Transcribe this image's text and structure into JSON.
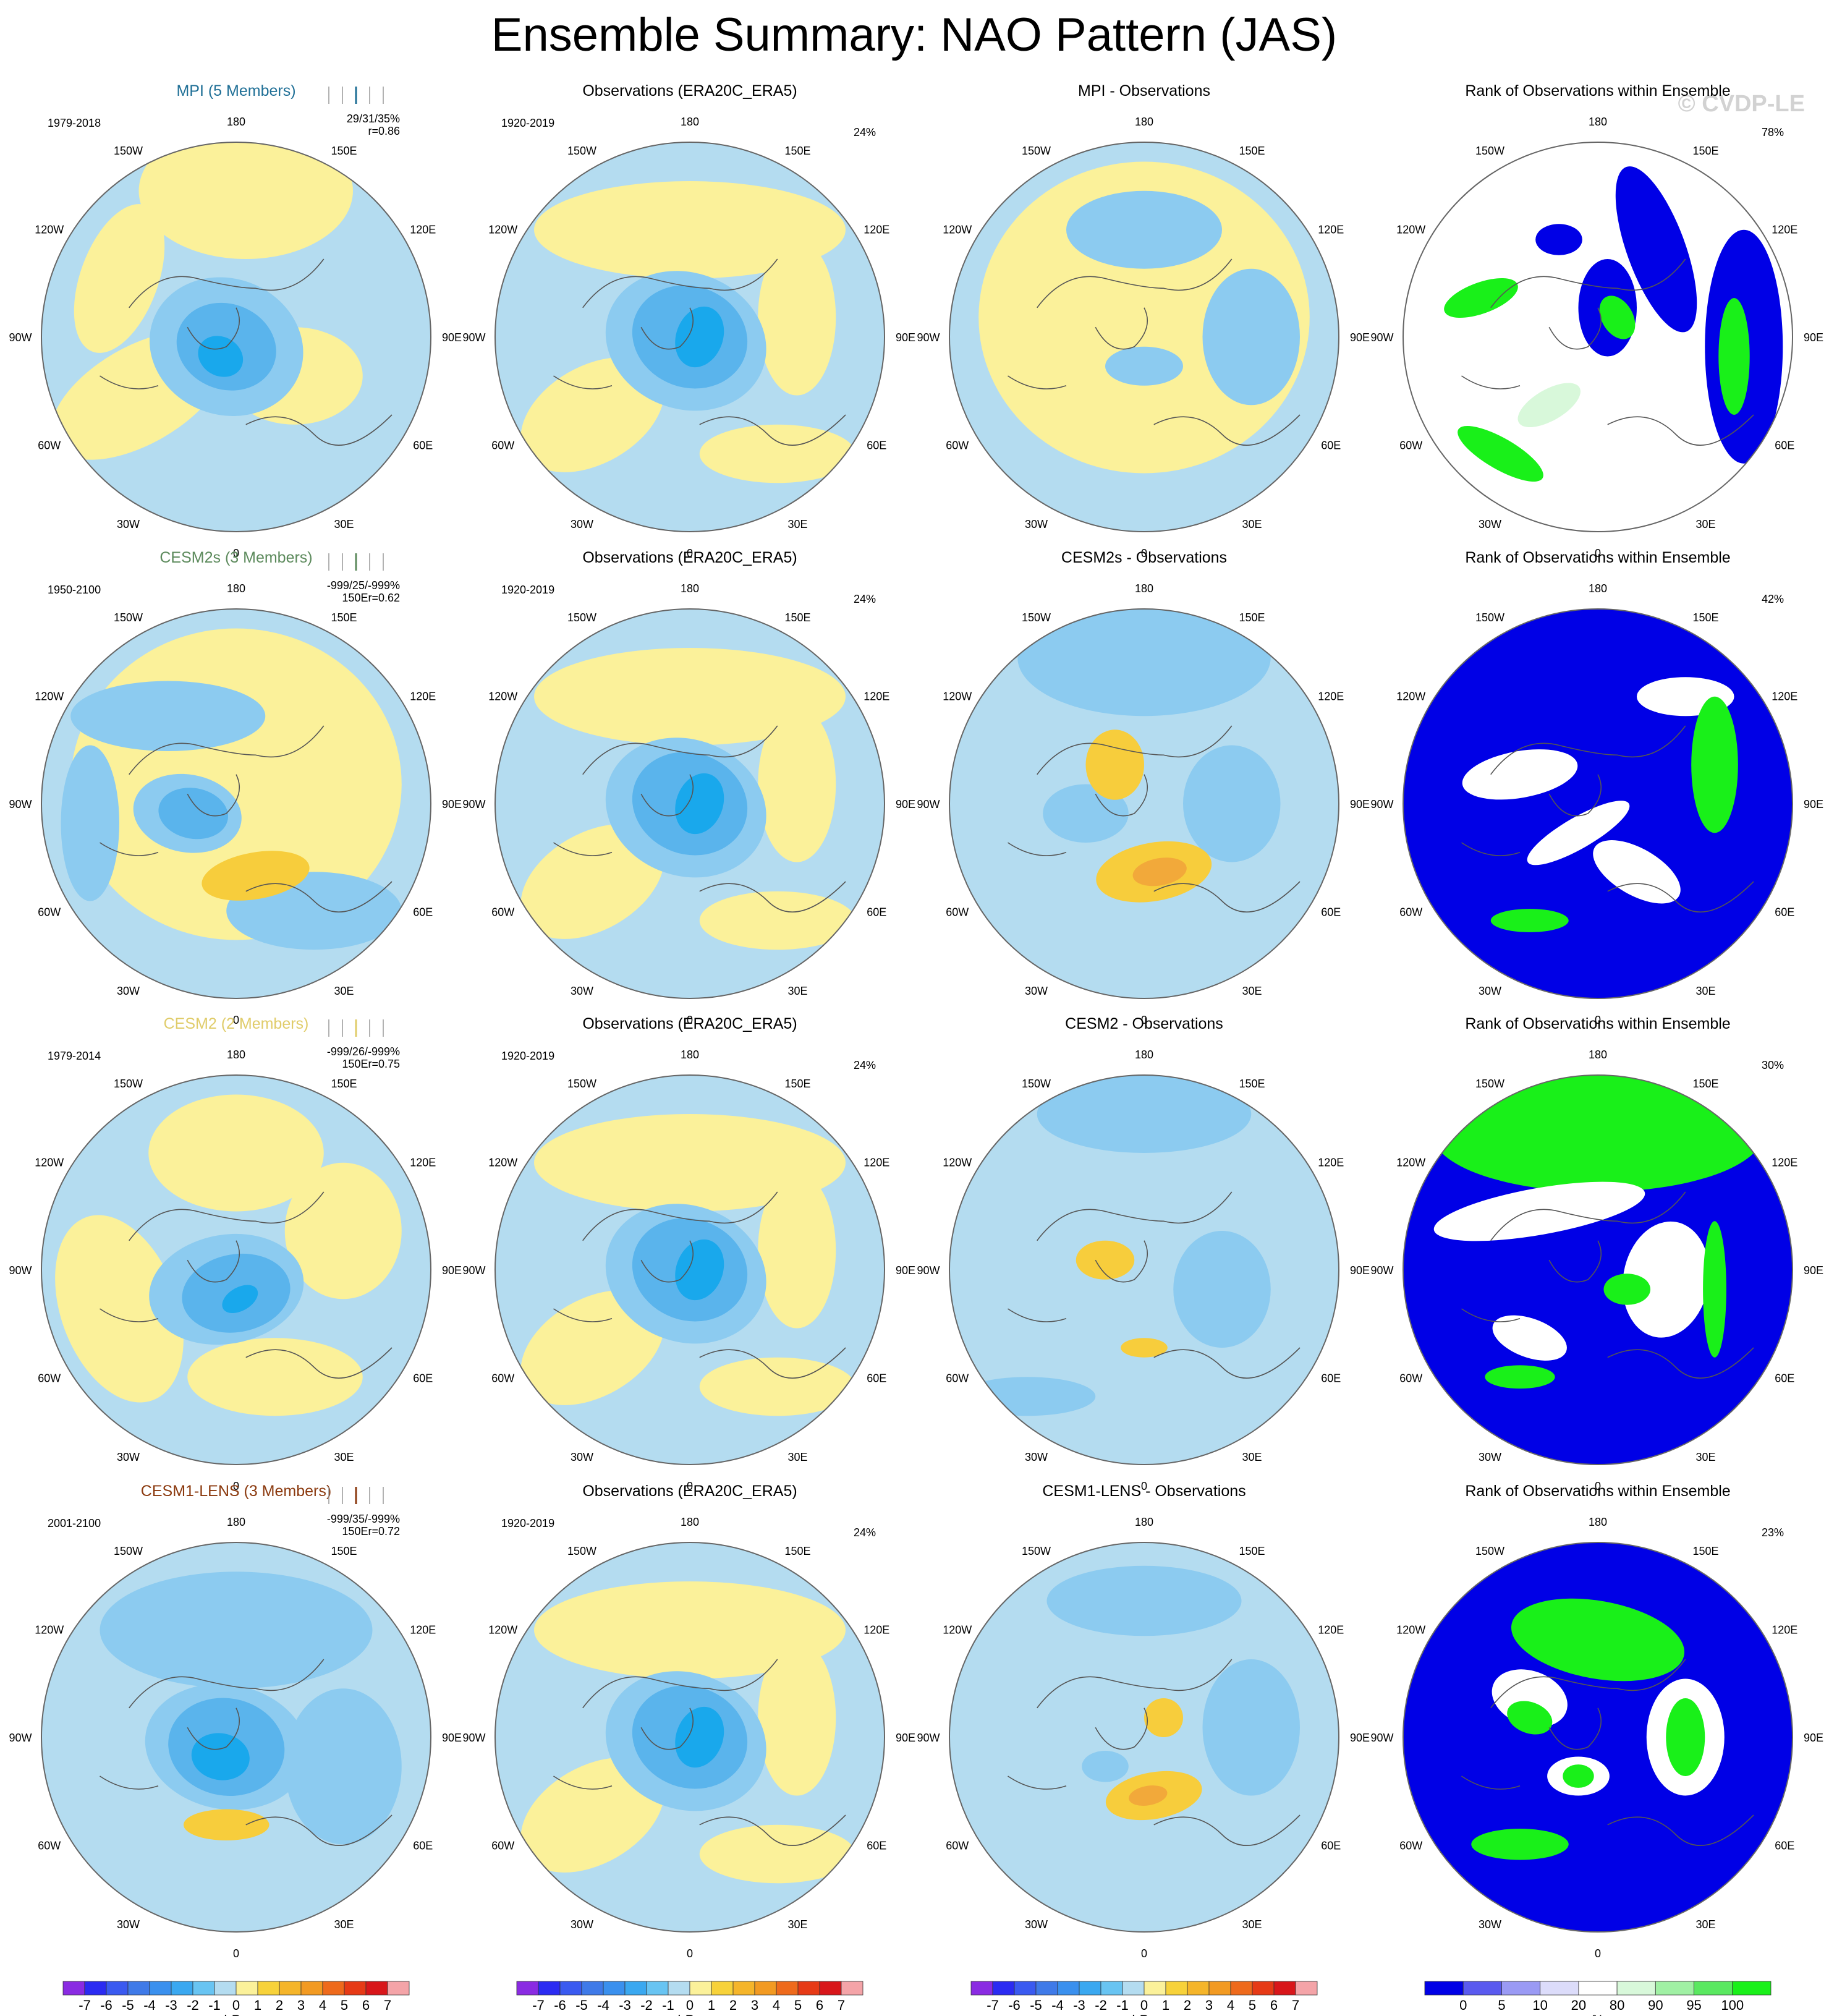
{
  "figure": {
    "title": "Ensemble Summary: NAO Pattern (JAS)",
    "copyright": "© CVDP-LE",
    "lon_labels": [
      "180",
      "150E",
      "120E",
      "90E",
      "60E",
      "30E",
      "0",
      "30W",
      "60W",
      "90W",
      "120W",
      "150W"
    ],
    "colors": {
      "ocean_blue": "#b4dcf0",
      "neg1": "#8ccbf0",
      "neg2": "#5ab4ec",
      "neg3": "#19a8ec",
      "neg4": "#4a8ee8",
      "pos_yellow": "#fbf19a",
      "pos1": "#f7cd3c",
      "pos2": "#f2a93a",
      "pos3": "#ea7e2c",
      "rank_blue": "#0000e6",
      "rank_green": "#19f019",
      "rank_lightgreen": "#d8f8da",
      "rank_white": "#ffffff"
    }
  },
  "rows": [
    {
      "model": {
        "title": "MPI (5 Members)",
        "title_color": "#1f6f96",
        "period": "1979-2018",
        "stats_line1": "29/31/35%",
        "stats_line2": "r=0.86",
        "stats_150e": "150E"
      },
      "obs": {
        "title": "Observations (ERA20C_ERA5)",
        "period": "1920-2019",
        "pct": "24%"
      },
      "diff": {
        "title": "MPI - Observations"
      },
      "rank": {
        "title": "Rank of Observations within Ensemble",
        "pct": "78%"
      }
    },
    {
      "model": {
        "title": "CESM2s (3 Members)",
        "title_color": "#5c8a5c",
        "period": "1950-2100",
        "stats_line1": "-999/25/-999%",
        "stats_line2": "150Er=0.62",
        "stats_150e": ""
      },
      "obs": {
        "title": "Observations (ERA20C_ERA5)",
        "period": "1920-2019",
        "pct": "24%"
      },
      "diff": {
        "title": "CESM2s - Observations"
      },
      "rank": {
        "title": "Rank of Observations within Ensemble",
        "pct": "42%"
      }
    },
    {
      "model": {
        "title": "CESM2 (2 Members)",
        "title_color": "#e0cc6a",
        "period": "1979-2014",
        "stats_line1": "-999/26/-999%",
        "stats_line2": "150Er=0.75",
        "stats_150e": ""
      },
      "obs": {
        "title": "Observations (ERA20C_ERA5)",
        "period": "1920-2019",
        "pct": "24%"
      },
      "diff": {
        "title": "CESM2 - Observations"
      },
      "rank": {
        "title": "Rank of Observations within Ensemble",
        "pct": "30%"
      }
    },
    {
      "model": {
        "title": "CESM1-LENS (3 Members)",
        "title_color": "#8b3a0f",
        "period": "2001-2100",
        "stats_line1": "-999/35/-999%",
        "stats_line2": "150Er=0.72",
        "stats_150e": ""
      },
      "obs": {
        "title": "Observations (ERA20C_ERA5)",
        "period": "1920-2019",
        "pct": "24%"
      },
      "diff": {
        "title": "CESM1-LENS - Observations"
      },
      "rank": {
        "title": "Rank of Observations within Ensemble",
        "pct": "23%"
      }
    }
  ],
  "colorbars": [
    {
      "unit": "hPa",
      "labels": [
        "-7",
        "-6",
        "-5",
        "-4",
        "-3",
        "-2",
        "-1",
        "0",
        "1",
        "2",
        "3",
        "4",
        "5",
        "6",
        "7"
      ],
      "colors": [
        "#8a2be2",
        "#2b2bf2",
        "#3a5af0",
        "#3f7ae8",
        "#3a90ee",
        "#3aa8f0",
        "#68c4f2",
        "#b4dcf0",
        "#fbf19a",
        "#f7d23a",
        "#f5b52a",
        "#f29a22",
        "#ee6a1c",
        "#e63a16",
        "#d8161a",
        "#f4a4a8"
      ]
    },
    {
      "unit": "hPa",
      "labels": [
        "-7",
        "-6",
        "-5",
        "-4",
        "-3",
        "-2",
        "-1",
        "0",
        "1",
        "2",
        "3",
        "4",
        "5",
        "6",
        "7"
      ],
      "colors": [
        "#8a2be2",
        "#2b2bf2",
        "#3a5af0",
        "#3f7ae8",
        "#3a90ee",
        "#3aa8f0",
        "#68c4f2",
        "#b4dcf0",
        "#fbf19a",
        "#f7d23a",
        "#f5b52a",
        "#f29a22",
        "#ee6a1c",
        "#e63a16",
        "#d8161a",
        "#f4a4a8"
      ]
    },
    {
      "unit": "hPa",
      "labels": [
        "-7",
        "-6",
        "-5",
        "-4",
        "-3",
        "-2",
        "-1",
        "0",
        "1",
        "2",
        "3",
        "4",
        "5",
        "6",
        "7"
      ],
      "colors": [
        "#8a2be2",
        "#2b2bf2",
        "#3a5af0",
        "#3f7ae8",
        "#3a90ee",
        "#3aa8f0",
        "#68c4f2",
        "#b4dcf0",
        "#fbf19a",
        "#f7d23a",
        "#f5b52a",
        "#f29a22",
        "#ee6a1c",
        "#e63a16",
        "#d8161a",
        "#f4a4a8"
      ]
    },
    {
      "unit": "%",
      "labels": [
        "0",
        "5",
        "10",
        "20",
        "80",
        "90",
        "95",
        "100"
      ],
      "colors": [
        "#0000e6",
        "#5a5aef",
        "#9a9af4",
        "#dcdcfa",
        "#ffffff",
        "#d8f8da",
        "#a0f0a4",
        "#5ae860",
        "#19f019"
      ]
    }
  ]
}
